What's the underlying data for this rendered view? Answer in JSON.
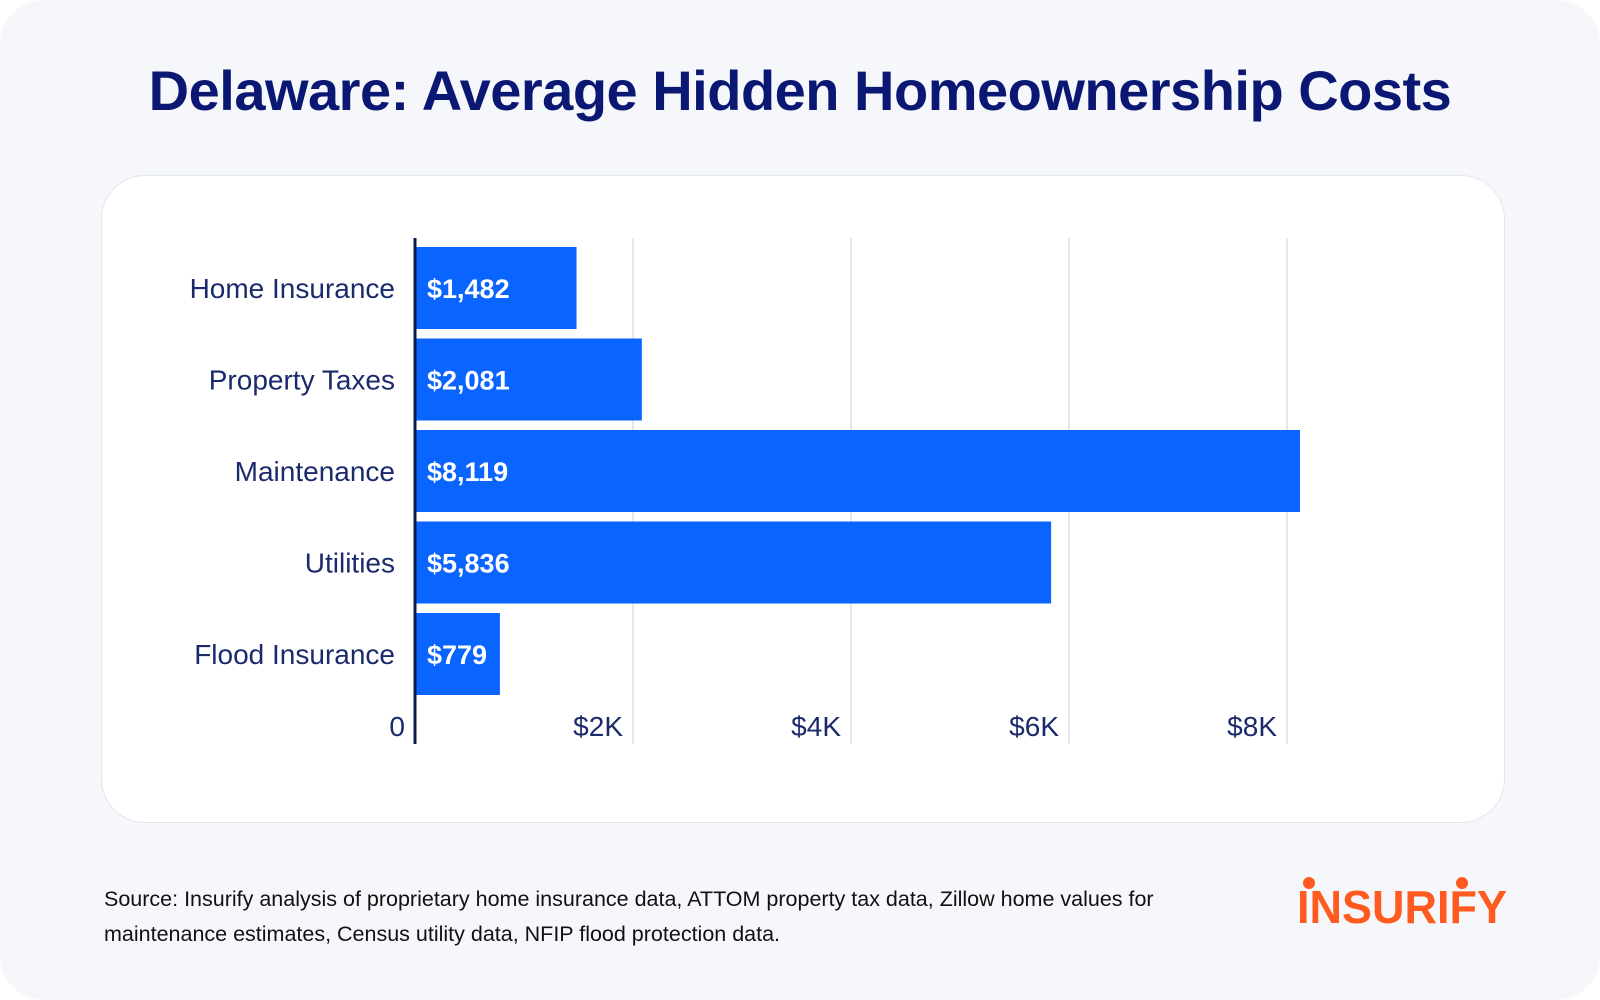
{
  "title": "Delaware: Average Hidden Homeownership Costs",
  "source": "Source: Insurify analysis of proprietary home insurance data, ATTOM property tax data, Zillow home values for maintenance estimates, Census utility data, NFIP flood protection data.",
  "logo": {
    "text": "INSURIFY",
    "color": "#ff5a1f"
  },
  "colors": {
    "bar": "#0a64ff",
    "title": "#0b1873",
    "axis": "#1b2a6b",
    "grid": "#dde1ea"
  },
  "chart_data": {
    "type": "bar",
    "orientation": "horizontal",
    "categories": [
      "Home Insurance",
      "Property Taxes",
      "Maintenance",
      "Utilities",
      "Flood Insurance"
    ],
    "values": [
      1482,
      2081,
      8119,
      5836,
      779
    ],
    "data_labels": [
      "$1,482",
      "$2,081",
      "$8,119",
      "$5,836",
      "$779"
    ],
    "xlim": [
      0,
      8000
    ],
    "xticks": [
      0,
      2000,
      4000,
      6000,
      8000
    ],
    "xtick_labels": [
      "0",
      "$2K",
      "$4K",
      "$6K",
      "$8K"
    ],
    "grid": true,
    "legend": "none"
  }
}
